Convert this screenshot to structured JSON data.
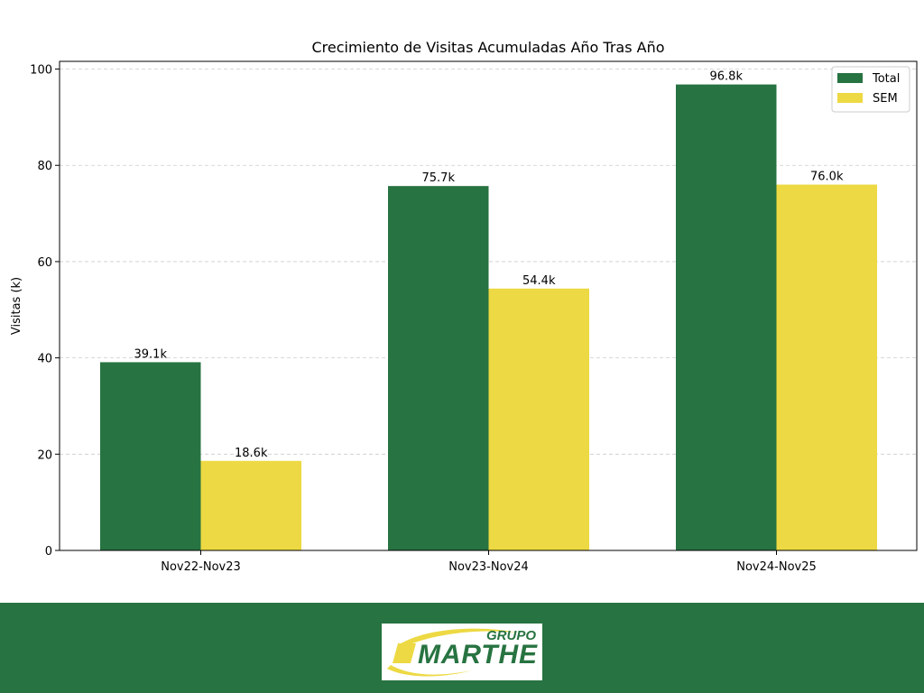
{
  "chart_data": {
    "type": "bar",
    "title": "Crecimiento de Visitas Acumuladas Año Tras Año",
    "xlabel": "",
    "ylabel": "Visitas (k)",
    "categories": [
      "Nov22-Nov23",
      "Nov23-Nov24",
      "Nov24-Nov25"
    ],
    "series": [
      {
        "name": "Total",
        "color": "#277341",
        "values": [
          39.1,
          75.7,
          96.8
        ],
        "labels": [
          "39.1k",
          "75.7k",
          "96.8k"
        ]
      },
      {
        "name": "SEM",
        "color": "#EDD943",
        "values": [
          18.6,
          54.4,
          76.0
        ],
        "labels": [
          "18.6k",
          "54.4k",
          "76.0k"
        ]
      }
    ],
    "ylim": [
      0,
      101.6
    ],
    "yticks": [
      0,
      20,
      40,
      60,
      80,
      100
    ],
    "grid": "y-dashed",
    "legend": "top-right"
  },
  "footer": {
    "background": "#277341",
    "logo": {
      "line1": "GRUPO",
      "line2": "MARTHE",
      "accent": "#EDD943",
      "text_color": "#277341"
    }
  }
}
